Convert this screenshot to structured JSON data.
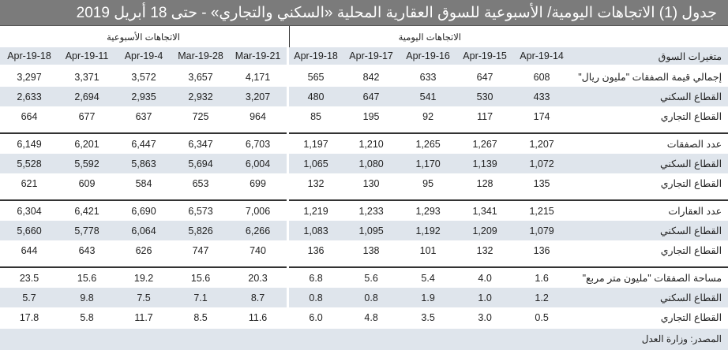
{
  "title": "جدول (1) الاتجاهات اليومية/ الأسبوعية للسوق العقارية المحلية «السكني والتجاري» - حتى 18 أبريل 2019",
  "sections": {
    "daily": "الاتجاهات اليومية",
    "weekly": "الاتجاهات الأسبوعية"
  },
  "header": {
    "label": "متغيرات السوق",
    "daily_dates": [
      "14-Apr-19",
      "15-Apr-19",
      "16-Apr-19",
      "17-Apr-19",
      "18-Apr-19"
    ],
    "weekly_dates": [
      "21-Mar-19",
      "28-Mar-19",
      "4-Apr-19",
      "11-Apr-19",
      "18-Apr-19"
    ]
  },
  "groups": [
    {
      "rows": [
        {
          "label": "إجمالي قيمة الصفقات \"مليون ريال\"",
          "daily": [
            "608",
            "647",
            "633",
            "842",
            "565"
          ],
          "weekly": [
            "4,171",
            "3,657",
            "3,572",
            "3,371",
            "3,297"
          ]
        },
        {
          "label": "القطاع السكني",
          "daily": [
            "433",
            "530",
            "541",
            "647",
            "480"
          ],
          "weekly": [
            "3,207",
            "2,932",
            "2,935",
            "2,694",
            "2,633"
          ]
        },
        {
          "label": "القطاع التجاري",
          "daily": [
            "174",
            "117",
            "92",
            "195",
            "85"
          ],
          "weekly": [
            "964",
            "725",
            "637",
            "677",
            "664"
          ]
        }
      ]
    },
    {
      "rows": [
        {
          "label": "عدد الصفقات",
          "daily": [
            "1,207",
            "1,267",
            "1,265",
            "1,210",
            "1,197"
          ],
          "weekly": [
            "6,703",
            "6,347",
            "6,447",
            "6,201",
            "6,149"
          ]
        },
        {
          "label": "القطاع السكني",
          "daily": [
            "1,072",
            "1,139",
            "1,170",
            "1,080",
            "1,065"
          ],
          "weekly": [
            "6,004",
            "5,694",
            "5,863",
            "5,592",
            "5,528"
          ]
        },
        {
          "label": "القطاع التجاري",
          "daily": [
            "135",
            "128",
            "95",
            "130",
            "132"
          ],
          "weekly": [
            "699",
            "653",
            "584",
            "609",
            "621"
          ]
        }
      ]
    },
    {
      "rows": [
        {
          "label": "عدد العقارات",
          "daily": [
            "1,215",
            "1,341",
            "1,293",
            "1,233",
            "1,219"
          ],
          "weekly": [
            "7,006",
            "6,573",
            "6,690",
            "6,421",
            "6,304"
          ]
        },
        {
          "label": "القطاع السكني",
          "daily": [
            "1,079",
            "1,209",
            "1,192",
            "1,095",
            "1,083"
          ],
          "weekly": [
            "6,266",
            "5,826",
            "6,064",
            "5,778",
            "5,660"
          ]
        },
        {
          "label": "القطاع التجاري",
          "daily": [
            "136",
            "132",
            "101",
            "138",
            "136"
          ],
          "weekly": [
            "740",
            "747",
            "626",
            "643",
            "644"
          ]
        }
      ]
    },
    {
      "rows": [
        {
          "label": "مساحة الصفقات \"مليون متر مربع\"",
          "daily": [
            "1.6",
            "4.0",
            "5.4",
            "5.6",
            "6.8"
          ],
          "weekly": [
            "20.3",
            "15.6",
            "19.2",
            "15.6",
            "23.5"
          ]
        },
        {
          "label": "القطاع السكني",
          "daily": [
            "1.2",
            "1.0",
            "1.9",
            "0.8",
            "0.8"
          ],
          "weekly": [
            "8.7",
            "7.1",
            "7.5",
            "9.8",
            "5.7"
          ]
        },
        {
          "label": "القطاع التجاري",
          "daily": [
            "0.5",
            "3.0",
            "3.5",
            "4.8",
            "6.0"
          ],
          "weekly": [
            "11.6",
            "8.5",
            "11.7",
            "5.8",
            "17.8"
          ]
        }
      ]
    }
  ],
  "footer": "المصدر: وزارة العدل",
  "colors": {
    "title_bg": "#7b7b7b",
    "shade": "#dfe5ec"
  }
}
